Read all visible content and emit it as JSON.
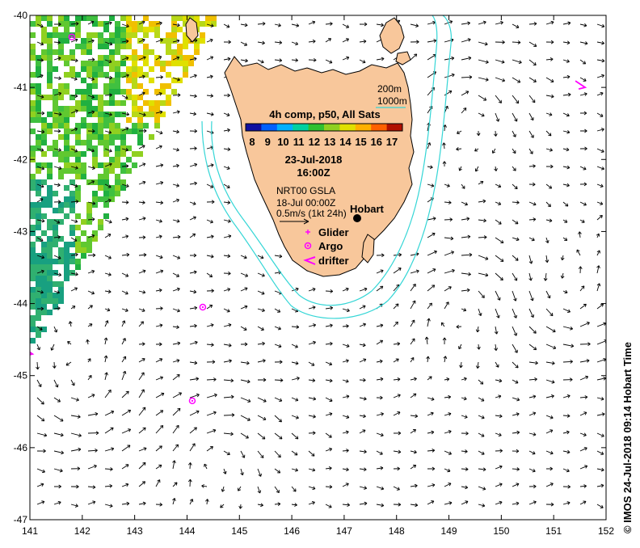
{
  "map": {
    "x_ticks": [
      "141",
      "142",
      "143",
      "144",
      "145",
      "146",
      "147",
      "148",
      "149",
      "150",
      "151",
      "152"
    ],
    "y_ticks": [
      "-40",
      "-41",
      "-42",
      "-43",
      "-44",
      "-45",
      "-46",
      "-47"
    ],
    "lon_range": [
      141,
      152
    ],
    "lat_range": [
      -47,
      -40
    ],
    "colors": {
      "land": "#f8c79b",
      "coast": "#000000",
      "isobath": "#35d6d6",
      "markers": "#ff00ff",
      "arrows": "#000000"
    }
  },
  "isobath_legend": {
    "shallow": "200m",
    "deep": "1000m"
  },
  "colorbar": {
    "title": "4h comp, p50, All Sats",
    "ticks": [
      "8",
      "9",
      "10",
      "11",
      "12",
      "13",
      "14",
      "15",
      "16",
      "17"
    ],
    "colors": [
      "#1010a0",
      "#0060ff",
      "#00b0ff",
      "#00d0a0",
      "#30c030",
      "#90d020",
      "#e0e000",
      "#ffb000",
      "#ff6000",
      "#b01000"
    ]
  },
  "info": {
    "date": "23-Jul-2018",
    "time": "16:00Z",
    "product": "NRT00 GSLA",
    "gsla_time": "18-Jul 00:00Z",
    "scale": "0.5m/s (1kt 24h)"
  },
  "place": {
    "name": "Hobart",
    "lon": 147.3,
    "lat": -42.9
  },
  "legend": {
    "glider": "Glider",
    "argo": "Argo",
    "drifter": "drifter"
  },
  "observations": {
    "argo": [
      {
        "lon": 141.8,
        "lat": -40.3
      },
      {
        "lon": 144.3,
        "lat": -44.05
      },
      {
        "lon": 144.1,
        "lat": -45.35
      }
    ],
    "drifters": [
      {
        "lon": 141.05,
        "lat": -44.7
      },
      {
        "lon": 151.6,
        "lat": -41.0
      }
    ]
  },
  "credit": "© IMOS 24-Jul-2018 09:14 Hobart Time"
}
